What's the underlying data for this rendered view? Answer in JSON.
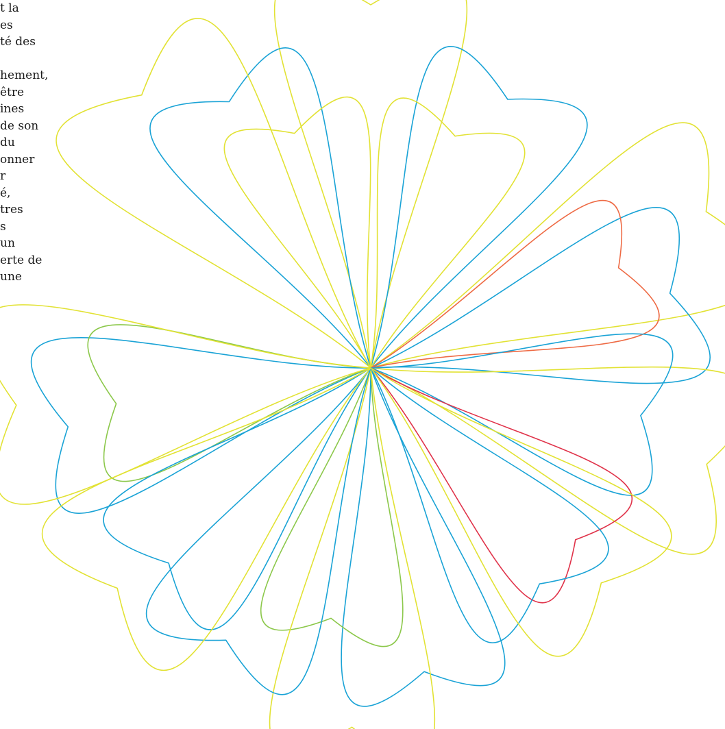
{
  "text_column": {
    "lines": [
      "t la",
      "es",
      "té des",
      "",
      "hement,",
      "être",
      "ines",
      "de son",
      " du",
      "onner",
      "r",
      "é,",
      "tres",
      "s",
      "un",
      "erte de",
      " une"
    ]
  },
  "flower_figure": {
    "colors": {
      "yellow": "#e2e234",
      "blue": "#1aa3d6",
      "green": "#8cc84b",
      "orange": "#ee6a44",
      "red": "#e0334a"
    }
  }
}
